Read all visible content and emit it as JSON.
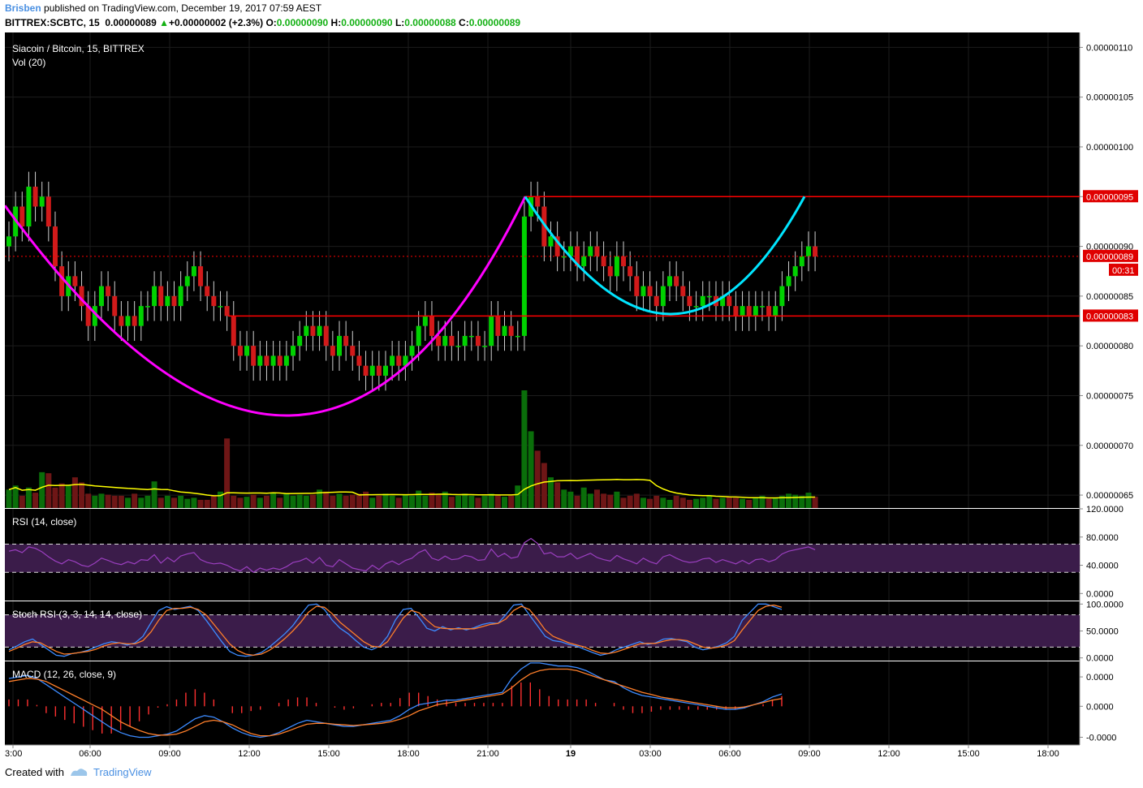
{
  "header": {
    "author": "Brisben",
    "published": "published on TradingView.com, December 19, 2017 07:59 AEST",
    "symbol": "BITTREX:SCBTC, 15",
    "price": "0.00000089",
    "change_arrow": "▲",
    "change": "+0.00000002 (+2.3%)",
    "o_label": "O:",
    "o": "0.00000090",
    "h_label": "H:",
    "h": "0.00000090",
    "l_label": "L:",
    "l": "0.00000088",
    "c_label": "C:",
    "c": "0.00000089"
  },
  "footer": {
    "created_with": "Created with",
    "brand": "TradingView"
  },
  "colors": {
    "bg": "#000000",
    "up": "#00d200",
    "down": "#d21a1a",
    "vol_up": "#0a6e0a",
    "vol_down": "#6e1616",
    "vol_ma": "#ffff00",
    "cup_curve": "#ff00ff",
    "handle_curve": "#00e5ff",
    "level_line": "#ff0000",
    "rsi": "#9b3fc0",
    "macd": "#3d8bff",
    "signal": "#ff7f2a",
    "hist": "#ff3030",
    "band": "#3b1c4a"
  },
  "chart_data": [
    {
      "type": "candlestick",
      "title": "Siacoin / Bitcoin, 15, BITTREX",
      "sub_label": "Vol (20)",
      "x_tick_labels": [
        "3:00",
        "06:00",
        "09:00",
        "12:00",
        "15:00",
        "18:00",
        "21:00",
        "19",
        "03:00",
        "06:00",
        "09:00",
        "12:00",
        "15:00",
        "18:00"
      ],
      "y_tick_labels": [
        "0.00000110",
        "0.00000105",
        "0.00000100",
        "0.00000095",
        "0.00000090",
        "0.00000085",
        "0.00000080",
        "0.00000075",
        "0.00000070",
        "0.00000065"
      ],
      "ylim": [
        6.37e-07,
        1.115e-06
      ],
      "closes": [
        91,
        94,
        92,
        96,
        94,
        95,
        92,
        88,
        85,
        87,
        86,
        84,
        82,
        84,
        86,
        85,
        83,
        82,
        83,
        82,
        84,
        84,
        86,
        84,
        85,
        84,
        86,
        87,
        88,
        86,
        85,
        84,
        84,
        83,
        80,
        79,
        80,
        78,
        79,
        78,
        79,
        78,
        79,
        80,
        81,
        82,
        81,
        82,
        80,
        79,
        81,
        80,
        79,
        78,
        77,
        78,
        77,
        78,
        79,
        78,
        79,
        80,
        82,
        83,
        81,
        80,
        81,
        80,
        80,
        81,
        81,
        80,
        80,
        83,
        81,
        82,
        81,
        81,
        93,
        95,
        94,
        90,
        91,
        89,
        89,
        90,
        88,
        89,
        90,
        89,
        88,
        87,
        89,
        88,
        87,
        85,
        86,
        85,
        84,
        86,
        87,
        86,
        85,
        84,
        84,
        85,
        85,
        84,
        85,
        84,
        83,
        84,
        83,
        84,
        84,
        83,
        84,
        86,
        87,
        88,
        89,
        90,
        89
      ],
      "volume": [
        18,
        22,
        12,
        20,
        15,
        35,
        34,
        20,
        24,
        22,
        30,
        25,
        14,
        12,
        14,
        13,
        12,
        12,
        10,
        14,
        10,
        12,
        26,
        10,
        12,
        10,
        12,
        9,
        10,
        8,
        8,
        12,
        16,
        68,
        12,
        10,
        11,
        13,
        10,
        12,
        15,
        10,
        14,
        12,
        13,
        12,
        13,
        18,
        16,
        12,
        14,
        12,
        13,
        14,
        16,
        10,
        12,
        14,
        12,
        10,
        13,
        12,
        17,
        12,
        15,
        14,
        16,
        11,
        12,
        14,
        12,
        10,
        12,
        14,
        13,
        11,
        12,
        22,
        115,
        75,
        56,
        44,
        30,
        25,
        18,
        16,
        12,
        20,
        14,
        18,
        14,
        13,
        16,
        10,
        12,
        14,
        10,
        9,
        12,
        10,
        8,
        12,
        10,
        8,
        9,
        10,
        12,
        9,
        10,
        11,
        10,
        9,
        8,
        10,
        12,
        9,
        10,
        12,
        14,
        13,
        12,
        15,
        11
      ],
      "vol_ma_label": "Vol (20)",
      "levels": [
        9.5e-07,
        8.9e-07,
        8.3e-07
      ],
      "level_labels": [
        "0.00000095",
        "0.00000089",
        "0.00000083"
      ],
      "countdown": "00:31",
      "annotations": [
        "cup curve (magenta)",
        "handle curve (cyan)"
      ]
    },
    {
      "type": "line",
      "title": "RSI (14, close)",
      "y_tick_labels": [
        "120.0000",
        "80.0000",
        "40.0000",
        "0.0000"
      ],
      "ylim": [
        -10,
        120
      ],
      "band": [
        30,
        70
      ],
      "values": [
        60,
        62,
        58,
        66,
        64,
        59,
        52,
        46,
        42,
        48,
        45,
        40,
        38,
        43,
        50,
        47,
        43,
        41,
        45,
        42,
        48,
        47,
        55,
        43,
        51,
        45,
        53,
        56,
        58,
        48,
        44,
        42,
        43,
        40,
        35,
        32,
        38,
        30,
        36,
        33,
        36,
        34,
        38,
        44,
        46,
        50,
        43,
        51,
        40,
        38,
        48,
        42,
        36,
        34,
        32,
        40,
        34,
        42,
        46,
        41,
        47,
        50,
        58,
        62,
        50,
        47,
        53,
        48,
        49,
        54,
        52,
        47,
        48,
        63,
        52,
        57,
        50,
        52,
        72,
        78,
        71,
        56,
        58,
        52,
        52,
        57,
        49,
        53,
        57,
        51,
        48,
        46,
        54,
        49,
        46,
        42,
        50,
        45,
        42,
        52,
        55,
        50,
        46,
        44,
        45,
        49,
        50,
        44,
        48,
        45,
        42,
        47,
        42,
        48,
        49,
        45,
        48,
        56,
        60,
        62,
        64,
        66,
        62
      ]
    },
    {
      "type": "line",
      "title": "Stoch RSI (3, 3, 14, 14, close)",
      "y_tick_labels": [
        "100.0000",
        "50.0000",
        "0.0000"
      ],
      "ylim": [
        -5,
        105
      ],
      "band": [
        20,
        80
      ],
      "series": [
        {
          "name": "K",
          "values": [
            15,
            22,
            30,
            35,
            25,
            15,
            5,
            3,
            8,
            10,
            14,
            20,
            26,
            30,
            28,
            24,
            28,
            40,
            65,
            88,
            95,
            90,
            93,
            96,
            88,
            70,
            50,
            30,
            12,
            5,
            3,
            5,
            10,
            20,
            32,
            45,
            60,
            80,
            98,
            100,
            90,
            70,
            55,
            45,
            32,
            20,
            15,
            22,
            40,
            70,
            90,
            92,
            75,
            55,
            50,
            58,
            52,
            56,
            52,
            56,
            62,
            65,
            64,
            80,
            98,
            100,
            80,
            60,
            40,
            32,
            30,
            25,
            22,
            16,
            10,
            5,
            8,
            15,
            20,
            25,
            30,
            25,
            28,
            35,
            36,
            33,
            30,
            20,
            15,
            18,
            22,
            28,
            40,
            70,
            85,
            100,
            100,
            95,
            90
          ]
        },
        {
          "name": "D",
          "values": [
            12,
            18,
            25,
            30,
            28,
            20,
            12,
            7,
            8,
            10,
            12,
            16,
            22,
            26,
            28,
            26,
            26,
            32,
            48,
            70,
            88,
            92,
            92,
            94,
            90,
            80,
            62,
            44,
            26,
            14,
            7,
            5,
            7,
            14,
            24,
            36,
            50,
            66,
            85,
            96,
            94,
            82,
            66,
            54,
            42,
            30,
            22,
            20,
            30,
            52,
            74,
            88,
            84,
            70,
            58,
            55,
            54,
            54,
            54,
            54,
            58,
            62,
            64,
            72,
            88,
            96,
            90,
            72,
            52,
            40,
            34,
            28,
            24,
            20,
            14,
            9,
            8,
            11,
            16,
            21,
            26,
            27,
            27,
            31,
            34,
            34,
            32,
            26,
            20,
            18,
            20,
            24,
            32,
            52,
            70,
            88,
            96,
            98,
            94
          ]
        }
      ]
    },
    {
      "type": "line",
      "title": "MACD (12, 26, close, 9)",
      "y_tick_labels": [
        "0.0000",
        "0.0000",
        "-0.0000"
      ],
      "ylim": [
        -1.25,
        1.45
      ],
      "series": [
        {
          "name": "MACD",
          "values": [
            0.9,
            0.95,
            1.0,
            0.9,
            0.7,
            0.5,
            0.3,
            0.1,
            -0.1,
            -0.3,
            -0.5,
            -0.7,
            -0.85,
            -0.95,
            -1.0,
            -1.0,
            -0.95,
            -0.9,
            -0.8,
            -0.6,
            -0.4,
            -0.3,
            -0.35,
            -0.5,
            -0.7,
            -0.85,
            -0.95,
            -1.0,
            -0.95,
            -0.85,
            -0.7,
            -0.55,
            -0.45,
            -0.5,
            -0.55,
            -0.6,
            -0.65,
            -0.65,
            -0.6,
            -0.55,
            -0.5,
            -0.45,
            -0.3,
            -0.1,
            0.05,
            0.1,
            0.15,
            0.2,
            0.2,
            0.25,
            0.3,
            0.35,
            0.4,
            0.45,
            0.9,
            1.2,
            1.4,
            1.4,
            1.35,
            1.3,
            1.3,
            1.25,
            1.15,
            1.0,
            0.85,
            0.8,
            0.6,
            0.45,
            0.35,
            0.3,
            0.25,
            0.2,
            0.15,
            0.1,
            0.05,
            0.0,
            -0.05,
            -0.1,
            -0.1,
            -0.05,
            0.05,
            0.15,
            0.3,
            0.4
          ]
        },
        {
          "name": "Signal",
          "values": [
            0.8,
            0.85,
            0.9,
            0.88,
            0.8,
            0.65,
            0.5,
            0.35,
            0.2,
            0.05,
            -0.1,
            -0.3,
            -0.5,
            -0.65,
            -0.78,
            -0.88,
            -0.93,
            -0.93,
            -0.9,
            -0.8,
            -0.65,
            -0.5,
            -0.45,
            -0.5,
            -0.6,
            -0.75,
            -0.88,
            -0.95,
            -0.95,
            -0.9,
            -0.8,
            -0.68,
            -0.58,
            -0.55,
            -0.55,
            -0.58,
            -0.6,
            -0.62,
            -0.6,
            -0.58,
            -0.55,
            -0.5,
            -0.42,
            -0.3,
            -0.15,
            -0.05,
            0.05,
            0.1,
            0.15,
            0.2,
            0.25,
            0.3,
            0.35,
            0.4,
            0.6,
            0.85,
            1.05,
            1.15,
            1.2,
            1.2,
            1.2,
            1.15,
            1.05,
            0.95,
            0.85,
            0.75,
            0.65,
            0.55,
            0.45,
            0.38,
            0.3,
            0.25,
            0.2,
            0.15,
            0.1,
            0.05,
            0.0,
            -0.05,
            -0.05,
            -0.02,
            0.05,
            0.12,
            0.2,
            0.25
          ]
        }
      ]
    }
  ]
}
